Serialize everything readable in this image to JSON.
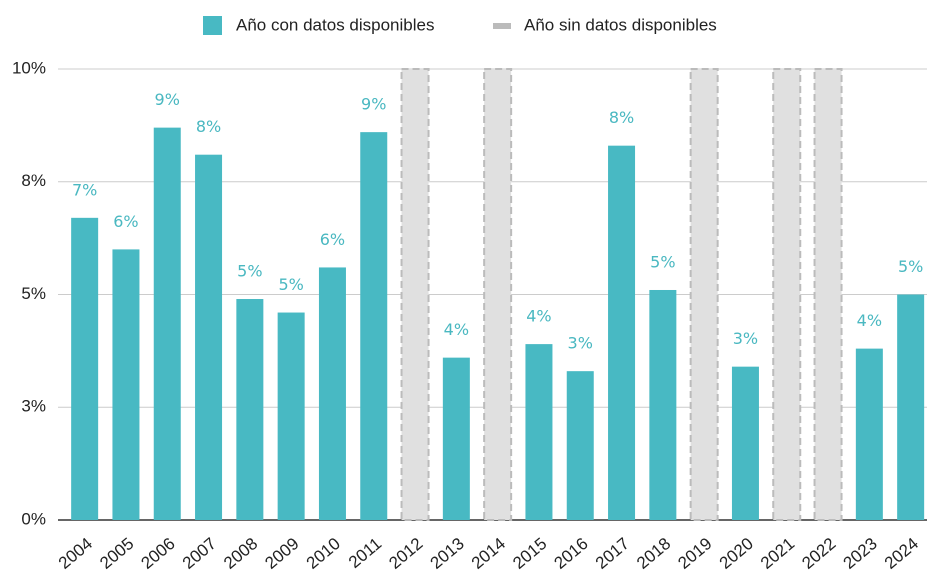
{
  "chart_data": {
    "type": "bar",
    "categories": [
      "2004",
      "2005",
      "2006",
      "2007",
      "2008",
      "2009",
      "2010",
      "2011",
      "2012",
      "2013",
      "2014",
      "2015",
      "2016",
      "2017",
      "2018",
      "2019",
      "2020",
      "2021",
      "2022",
      "2023",
      "2024"
    ],
    "series": [
      {
        "name": "Año con datos disponibles",
        "color": "#48b9c3",
        "values": [
          6.7,
          6.0,
          8.7,
          8.1,
          4.9,
          4.6,
          5.6,
          8.6,
          null,
          3.6,
          null,
          3.9,
          3.3,
          8.3,
          5.1,
          null,
          3.4,
          null,
          null,
          3.8,
          5.0
        ],
        "value_labels": [
          "7%",
          "6%",
          "9%",
          "8%",
          "5%",
          "5%",
          "6%",
          "9%",
          null,
          "4%",
          null,
          "4%",
          "3%",
          "8%",
          "5%",
          null,
          "3%",
          null,
          null,
          "4%",
          "5%"
        ]
      },
      {
        "name": "Año sin datos disponibles",
        "color": "#e0e0e0",
        "values": [
          null,
          null,
          null,
          null,
          null,
          null,
          null,
          null,
          10,
          null,
          10,
          null,
          null,
          null,
          null,
          10,
          null,
          10,
          10,
          null,
          null
        ]
      }
    ],
    "ylim": [
      0,
      10
    ],
    "yticks": [
      {
        "value": 0,
        "label": "0%"
      },
      {
        "value": 2.5,
        "label": "3%"
      },
      {
        "value": 5,
        "label": "5%"
      },
      {
        "value": 7.5,
        "label": "8%"
      },
      {
        "value": 10,
        "label": "10%"
      }
    ],
    "grid": true,
    "legend": "top"
  }
}
